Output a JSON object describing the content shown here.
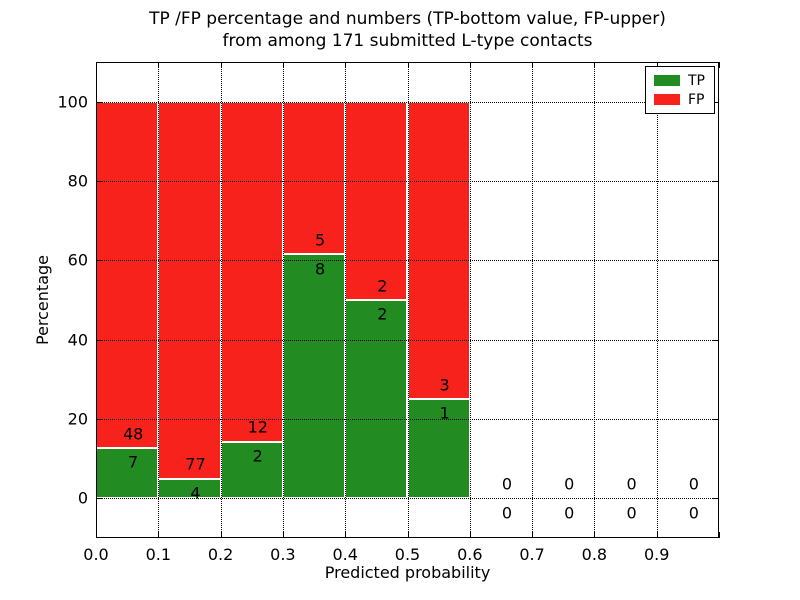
{
  "title": {
    "line1": "TP /FP percentage and numbers (TP-bottom value, FP-upper)",
    "line2": "from among 171 submitted L-type contacts"
  },
  "axes": {
    "xlabel": "Predicted probability",
    "ylabel": "Percentage",
    "xticks": [
      "0.0",
      "0.1",
      "0.2",
      "0.3",
      "0.4",
      "0.5",
      "0.6",
      "0.7",
      "0.8",
      "0.9"
    ],
    "xtick_values": [
      0.0,
      0.1,
      0.2,
      0.3,
      0.4,
      0.5,
      0.6,
      0.7,
      0.8,
      0.9
    ],
    "yticks": [
      "0",
      "20",
      "40",
      "60",
      "80",
      "100"
    ],
    "ytick_values": [
      0,
      20,
      40,
      60,
      80,
      100
    ]
  },
  "legend": {
    "items": [
      {
        "label": "TP",
        "color": "#228b22"
      },
      {
        "label": "FP",
        "color": "#f8221c"
      }
    ]
  },
  "colors": {
    "tp_green": "#228b22",
    "fp_red": "#f8221c",
    "bar_edge": "#ffffff",
    "grid": "#000000",
    "background": "#ffffff"
  },
  "chart_data": {
    "type": "bar",
    "stacked": true,
    "title": "TP /FP percentage and numbers (TP-bottom value, FP-upper) from among 171 submitted L-type contacts",
    "xlabel": "Predicted probability",
    "ylabel": "Percentage",
    "xlim": [
      0.0,
      1.0
    ],
    "ylim": [
      -10,
      110
    ],
    "grid": "dotted, drawn above bars",
    "legend_position": "upper right",
    "bin_width": 0.1,
    "bin_starts": [
      0.0,
      0.1,
      0.2,
      0.3,
      0.4,
      0.5,
      0.6,
      0.7,
      0.8,
      0.9
    ],
    "series": [
      {
        "name": "TP",
        "color": "#228b22",
        "counts": [
          7,
          4,
          2,
          8,
          2,
          1,
          0,
          0,
          0,
          0
        ],
        "percent": [
          12.73,
          4.94,
          14.29,
          61.54,
          50.0,
          25.0,
          0,
          0,
          0,
          0
        ]
      },
      {
        "name": "FP",
        "color": "#f8221c",
        "counts": [
          48,
          77,
          12,
          5,
          2,
          3,
          0,
          0,
          0,
          0
        ],
        "percent": [
          87.27,
          95.06,
          85.71,
          38.46,
          50.0,
          75.0,
          0,
          0,
          0,
          0
        ]
      }
    ],
    "total_contacts": 171,
    "annotation_rule": "TP count printed just below green segment top, FP count just above it; empty bins show 0 above and 0 below the zero line"
  }
}
